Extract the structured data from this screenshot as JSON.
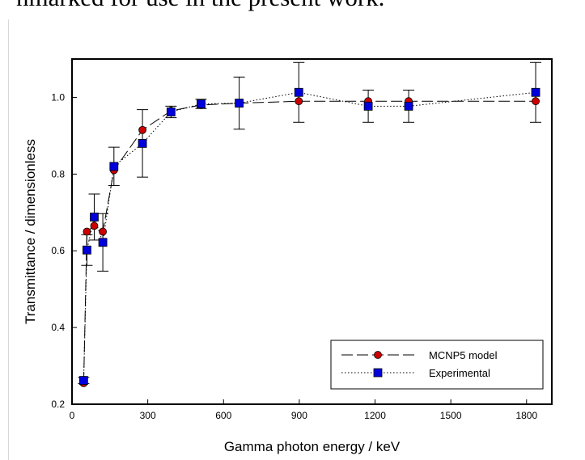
{
  "header_text": "nmarked for use in the present work.",
  "chart_data": {
    "type": "scatter",
    "title": "",
    "xlabel": "Gamma photon energy / keV",
    "ylabel": "Transmittance / dimensionless",
    "xlim": [
      0,
      1900
    ],
    "ylim": [
      0.2,
      1.1
    ],
    "xticks": [
      0,
      300,
      600,
      900,
      1200,
      1500,
      1800
    ],
    "yticks": [
      0.2,
      0.4,
      0.6,
      0.8,
      1.0
    ],
    "xtick_labels": [
      "0",
      "300",
      "600",
      "900",
      "1200",
      "1500",
      "1800"
    ],
    "ytick_labels": [
      "0.2",
      "0.4",
      "0.6",
      "0.8",
      "1.0"
    ],
    "grid": false,
    "legend_position": "bottom-right",
    "series": [
      {
        "name": "MCNP5 model",
        "color": "#cc0000",
        "marker": "circle",
        "line": "long-dash",
        "x": [
          46,
          59,
          88,
          122,
          166,
          279,
          392,
          511,
          662,
          898,
          1173,
          1333,
          1836
        ],
        "y": [
          0.255,
          0.65,
          0.665,
          0.65,
          0.81,
          0.915,
          0.965,
          0.98,
          0.985,
          0.99,
          0.99,
          0.99,
          0.99
        ]
      },
      {
        "name": "Experimental",
        "color": "#0000dd",
        "marker": "square",
        "line": "dotted",
        "x": [
          46,
          59,
          88,
          122,
          166,
          279,
          392,
          511,
          662,
          898,
          1173,
          1333,
          1836
        ],
        "y": [
          0.262,
          0.602,
          0.688,
          0.622,
          0.82,
          0.88,
          0.962,
          0.983,
          0.985,
          1.013,
          0.977,
          0.977,
          1.013
        ],
        "err": [
          0.008,
          0.04,
          0.06,
          0.075,
          0.05,
          0.088,
          0.015,
          0.012,
          0.068,
          0.078,
          0.042,
          0.042,
          0.078
        ]
      }
    ]
  }
}
